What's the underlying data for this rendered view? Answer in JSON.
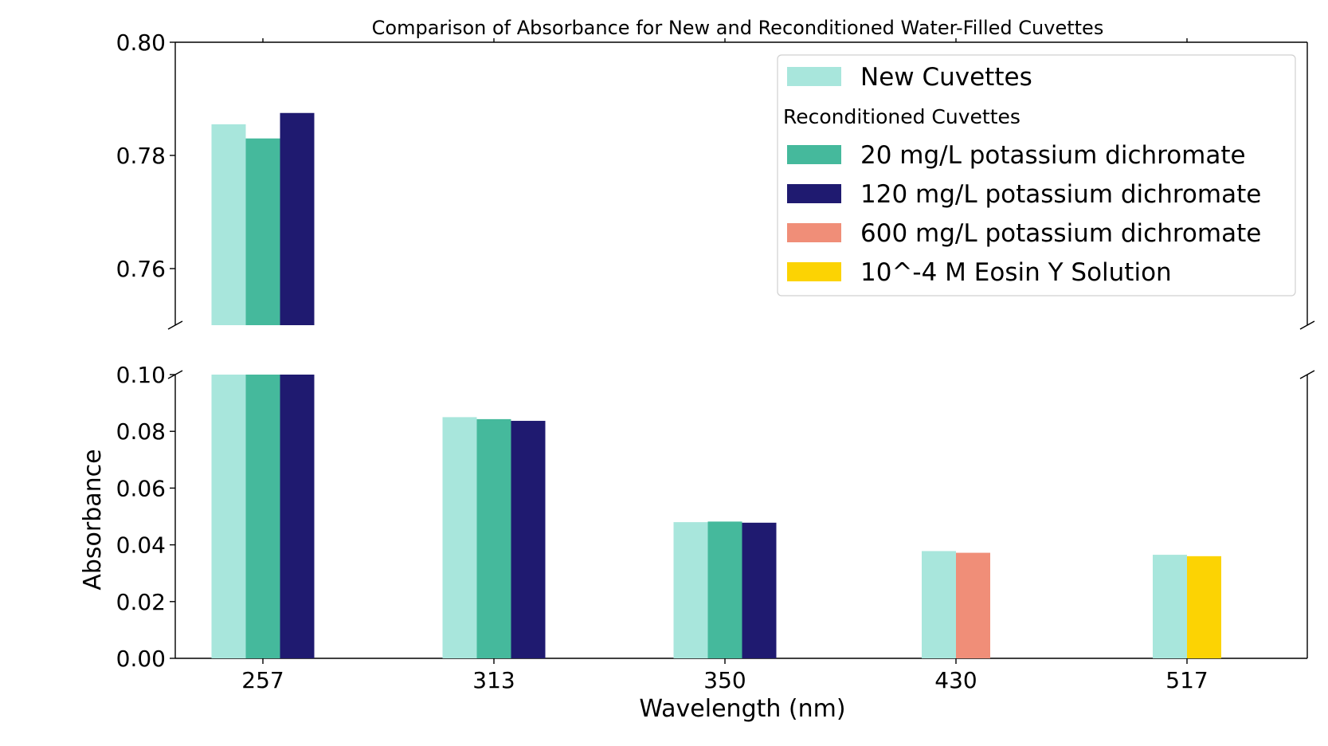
{
  "chart_data": {
    "type": "bar",
    "title": "Comparison of Absorbance for New and Reconditioned Water-Filled Cuvettes",
    "xlabel": "Wavelength (nm)",
    "ylabel": "Absorbance",
    "categories": [
      "257",
      "313",
      "350",
      "430",
      "517"
    ],
    "broken_axis": {
      "upper": {
        "ylim": [
          0.75,
          0.8
        ],
        "ticks": [
          "0.76",
          "0.78",
          "0.80"
        ],
        "tick_values": [
          0.76,
          0.78,
          0.8
        ]
      },
      "lower": {
        "ylim": [
          0.0,
          0.1
        ],
        "ticks": [
          "0.00",
          "0.02",
          "0.04",
          "0.06",
          "0.08",
          "0.10"
        ],
        "tick_values": [
          0.0,
          0.02,
          0.04,
          0.06,
          0.08,
          0.1
        ]
      }
    },
    "legend": {
      "placement": "top-right",
      "subheading": "Reconditioned Cuvettes"
    },
    "series": [
      {
        "name": "New Cuvettes",
        "color": "#a8e6dc",
        "values": [
          0.7855,
          0.085,
          0.048,
          0.0378,
          0.0365
        ]
      },
      {
        "name": "20 mg/L potassium dichromate",
        "color": "#45b99c",
        "values": [
          0.783,
          0.0843,
          0.0482,
          null,
          null
        ]
      },
      {
        "name": "120 mg/L potassium dichromate",
        "color": "#1f1a70",
        "values": [
          0.7875,
          0.0837,
          0.0478,
          null,
          null
        ]
      },
      {
        "name": "600 mg/L potassium dichromate",
        "color": "#f08e78",
        "values": [
          null,
          null,
          null,
          0.0372,
          null
        ]
      },
      {
        "name": "10^-4 M Eosin Y Solution",
        "color": "#fcd303",
        "values": [
          null,
          null,
          null,
          null,
          0.036
        ]
      }
    ]
  }
}
